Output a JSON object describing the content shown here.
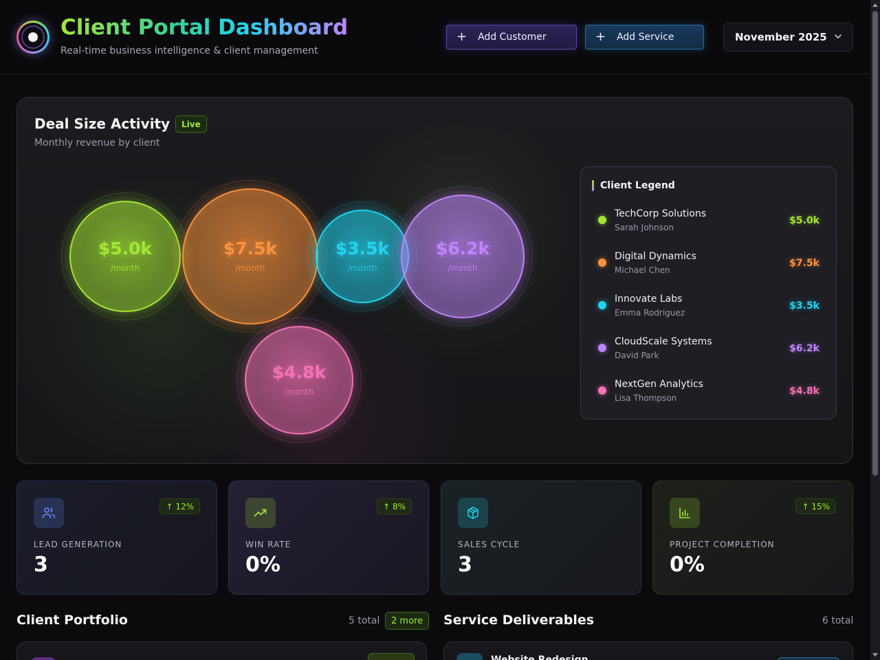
{
  "header": {
    "title": "Client Portal Dashboard",
    "subtitle": "Real-time business intelligence & client management",
    "add_customer_label": "Add Customer",
    "add_service_label": "Add Service",
    "plus_glyph": "+",
    "month_selected": "November 2025"
  },
  "activity": {
    "title": "Deal Size Activity",
    "live_badge": "Live",
    "subtitle": "Monthly revenue by client",
    "per_unit": "/month",
    "legend_title": "Client Legend",
    "clients": [
      {
        "name": "TechCorp Solutions",
        "contact": "Sarah Johnson",
        "value_label": "$5.0k",
        "value": 5.0,
        "color": "#a3e635"
      },
      {
        "name": "Digital Dynamics",
        "contact": "Michael Chen",
        "value_label": "$7.5k",
        "value": 7.5,
        "color": "#fb923c"
      },
      {
        "name": "Innovate Labs",
        "contact": "Emma Rodriguez",
        "value_label": "$3.5k",
        "value": 3.5,
        "color": "#22d3ee"
      },
      {
        "name": "CloudScale Systems",
        "contact": "David Park",
        "value_label": "$6.2k",
        "value": 6.2,
        "color": "#c084fc"
      },
      {
        "name": "NextGen Analytics",
        "contact": "Lisa Thompson",
        "value_label": "$4.8k",
        "value": 4.8,
        "color": "#f472b6"
      }
    ]
  },
  "kpis": [
    {
      "label": "LEAD GENERATION",
      "value": "3",
      "trend": "↑ 12%",
      "icon": "users-icon",
      "color": "#6b8cff"
    },
    {
      "label": "WIN RATE",
      "value": "0%",
      "trend": "↑ 8%",
      "icon": "trending-up-icon",
      "color": "#a3e635"
    },
    {
      "label": "SALES CYCLE",
      "value": "3",
      "trend": "",
      "icon": "package-icon",
      "color": "#22d3ee"
    },
    {
      "label": "PROJECT COMPLETION",
      "value": "0%",
      "trend": "↑ 15%",
      "icon": "bar-chart-icon",
      "color": "#a3e635"
    }
  ],
  "portfolio": {
    "title": "Client Portfolio",
    "count": "5 total",
    "more_badge": "2 more"
  },
  "deliverables": {
    "title": "Service Deliverables",
    "count": "6 total",
    "first_item": "Website Redesign"
  }
}
